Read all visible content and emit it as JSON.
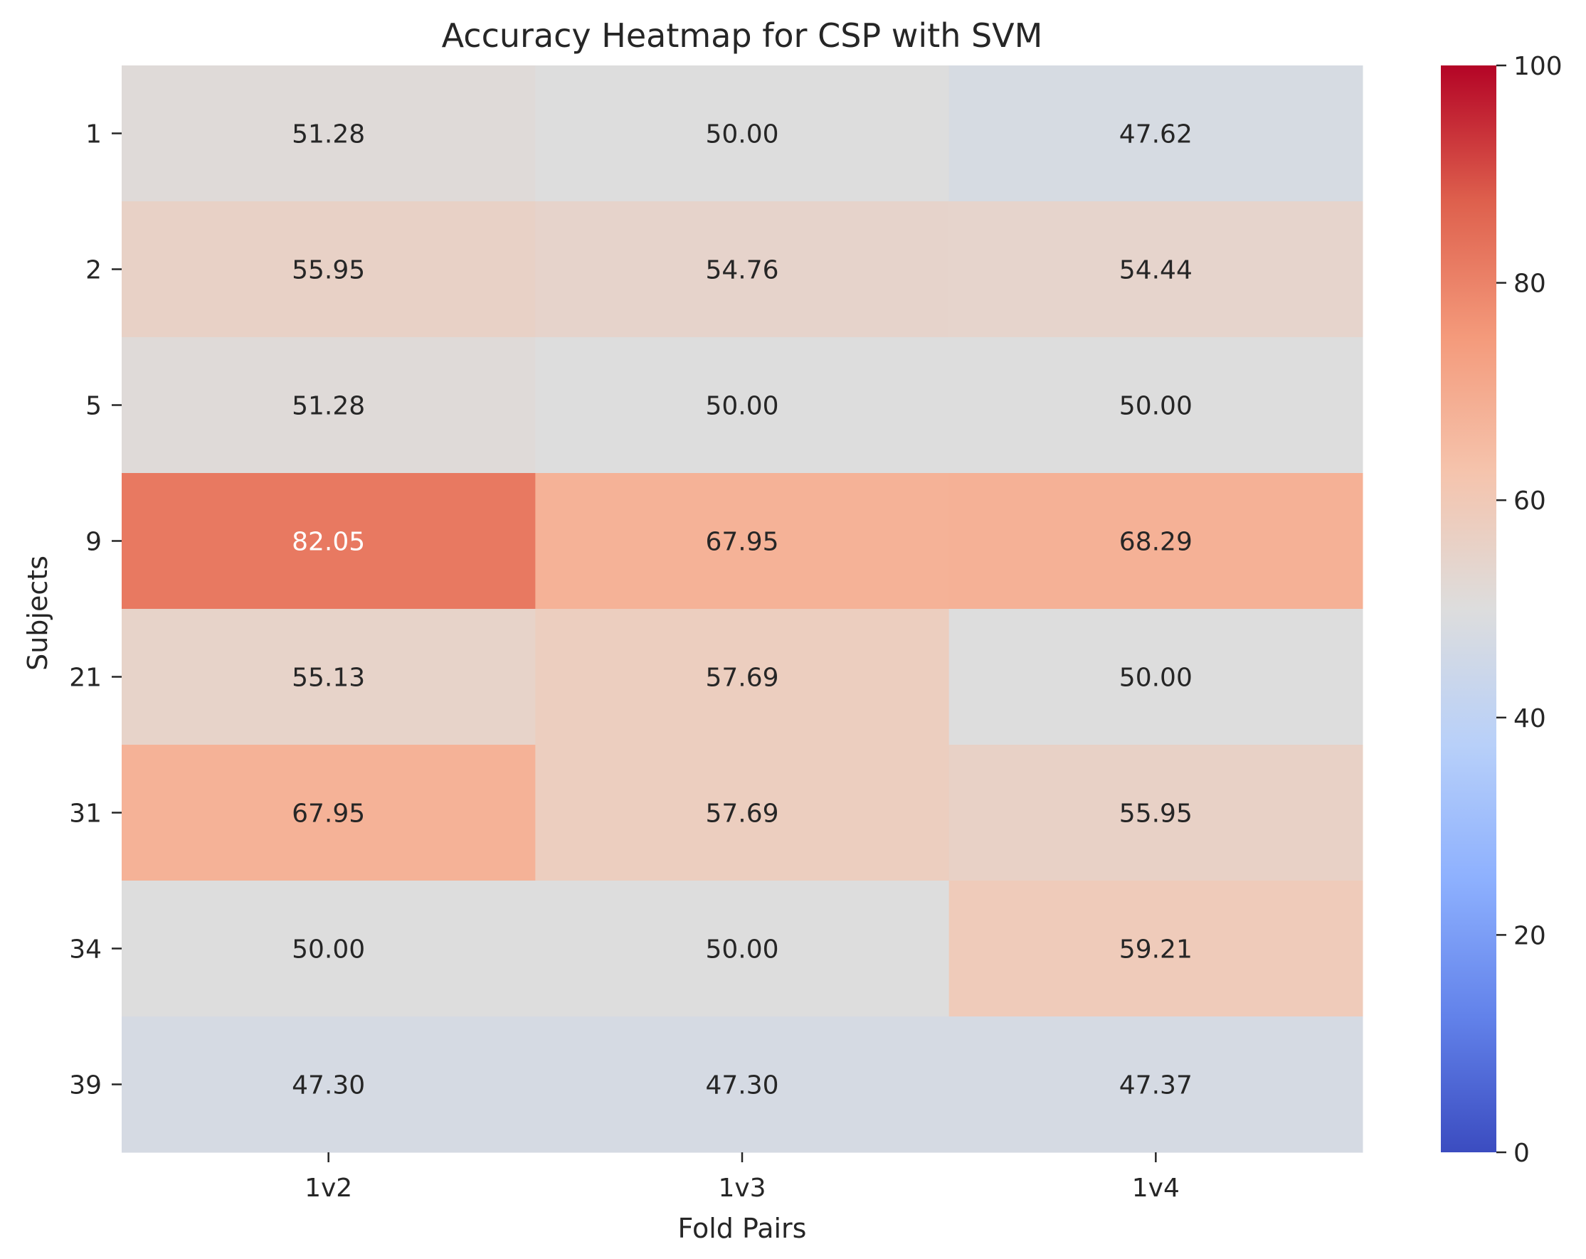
{
  "chart_data": {
    "type": "heatmap",
    "title": "Accuracy Heatmap for CSP with SVM",
    "xlabel": "Fold Pairs",
    "ylabel": "Subjects",
    "x_categories": [
      "1v2",
      "1v3",
      "1v4"
    ],
    "y_categories": [
      "1",
      "2",
      "5",
      "9",
      "21",
      "31",
      "34",
      "39"
    ],
    "values": [
      [
        51.28,
        50.0,
        47.62
      ],
      [
        55.95,
        54.76,
        54.44
      ],
      [
        51.28,
        50.0,
        50.0
      ],
      [
        82.05,
        67.95,
        68.29
      ],
      [
        55.13,
        57.69,
        50.0
      ],
      [
        67.95,
        57.69,
        55.95
      ],
      [
        50.0,
        50.0,
        59.21
      ],
      [
        47.3,
        47.3,
        47.37
      ]
    ],
    "value_labels": [
      [
        "51.28",
        "50.00",
        "47.62"
      ],
      [
        "55.95",
        "54.76",
        "54.44"
      ],
      [
        "51.28",
        "50.00",
        "50.00"
      ],
      [
        "82.05",
        "67.95",
        "68.29"
      ],
      [
        "55.13",
        "57.69",
        "50.00"
      ],
      [
        "67.95",
        "57.69",
        "55.95"
      ],
      [
        "50.00",
        "50.00",
        "59.21"
      ],
      [
        "47.30",
        "47.30",
        "47.37"
      ]
    ],
    "colormap": "coolwarm",
    "vmin": 0,
    "vmax": 100,
    "colorbar_ticks": [
      "0",
      "20",
      "40",
      "60",
      "80",
      "100"
    ],
    "colorbar_position": "right",
    "grid": false
  }
}
